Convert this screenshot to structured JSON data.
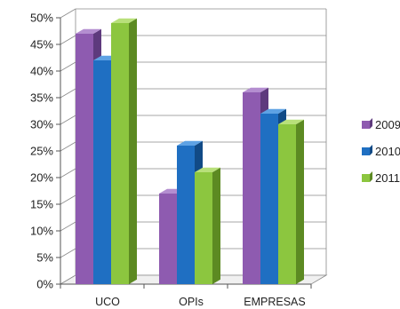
{
  "chart_data": {
    "type": "bar",
    "categories": [
      "UCO",
      "OPIs",
      "EMPRESAS"
    ],
    "series": [
      {
        "name": "2009",
        "values": [
          47,
          17,
          36
        ],
        "color": "#8E5BB0",
        "shade": "#5E3A7D",
        "top": "#B48ED0"
      },
      {
        "name": "2010",
        "values": [
          42,
          26,
          32
        ],
        "color": "#1F6FC2",
        "shade": "#114A86",
        "top": "#5EA2E4"
      },
      {
        "name": "2011",
        "values": [
          49,
          21,
          30
        ],
        "color": "#8CC63F",
        "shade": "#5C8A22",
        "top": "#B8E07A"
      }
    ],
    "y_ticks": [
      "0%",
      "5%",
      "10%",
      "15%",
      "20%",
      "25%",
      "30%",
      "35%",
      "40%",
      "45%",
      "50%"
    ],
    "ylim": [
      0,
      50
    ],
    "grid": true,
    "legend_position": "right",
    "title": "",
    "xlabel": "",
    "ylabel": ""
  }
}
